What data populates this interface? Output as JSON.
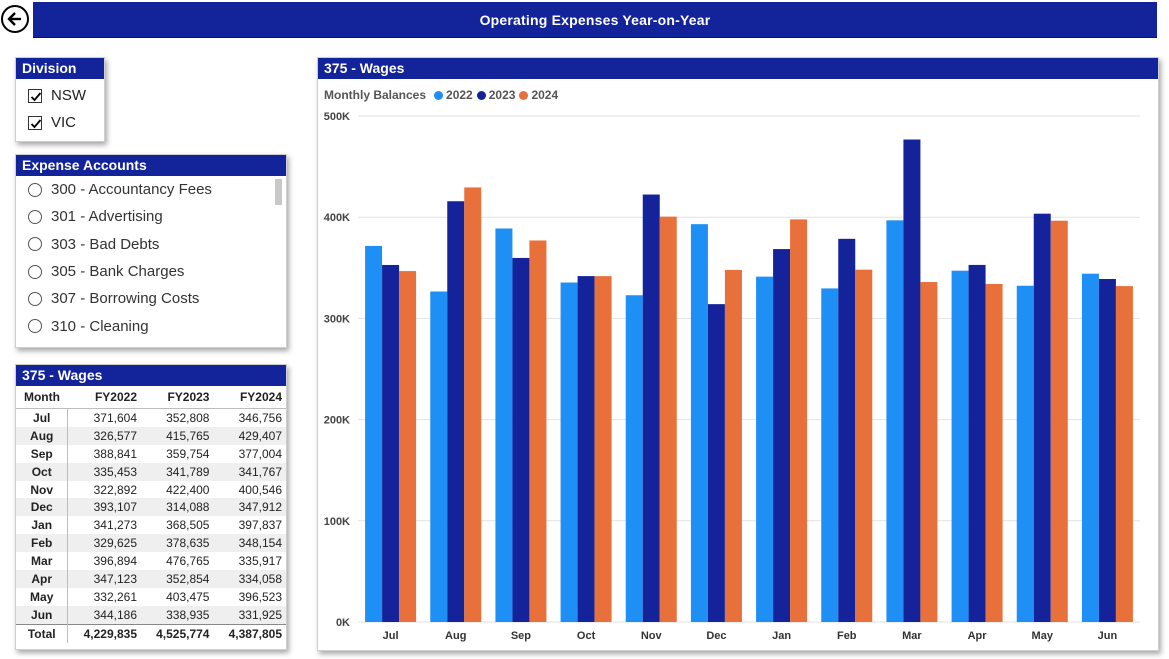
{
  "header": {
    "title": "Operating Expenses Year-on-Year",
    "back_icon": "back-arrow-icon"
  },
  "division": {
    "title": "Division",
    "items": [
      {
        "label": "NSW",
        "checked": true
      },
      {
        "label": "VIC",
        "checked": true
      }
    ]
  },
  "expense_accounts": {
    "title": "Expense Accounts",
    "items": [
      {
        "label": "300 - Accountancy Fees"
      },
      {
        "label": "301 - Advertising"
      },
      {
        "label": "303 - Bad Debts"
      },
      {
        "label": "305 - Bank Charges"
      },
      {
        "label": "307 - Borrowing Costs"
      },
      {
        "label": "310 - Cleaning"
      }
    ]
  },
  "wages_table": {
    "title": "375 - Wages",
    "columns": [
      "Month",
      "FY2022",
      "FY2023",
      "FY2024"
    ],
    "rows": [
      [
        "Jul",
        "371,604",
        "352,808",
        "346,756"
      ],
      [
        "Aug",
        "326,577",
        "415,765",
        "429,407"
      ],
      [
        "Sep",
        "388,841",
        "359,754",
        "377,004"
      ],
      [
        "Oct",
        "335,453",
        "341,789",
        "341,767"
      ],
      [
        "Nov",
        "322,892",
        "422,400",
        "400,546"
      ],
      [
        "Dec",
        "393,107",
        "314,088",
        "347,912"
      ],
      [
        "Jan",
        "341,273",
        "368,505",
        "397,837"
      ],
      [
        "Feb",
        "329,625",
        "378,635",
        "348,154"
      ],
      [
        "Mar",
        "396,894",
        "476,765",
        "335,917"
      ],
      [
        "Apr",
        "347,123",
        "352,854",
        "334,058"
      ],
      [
        "May",
        "332,261",
        "403,475",
        "396,523"
      ],
      [
        "Jun",
        "344,186",
        "338,935",
        "331,925"
      ]
    ],
    "total": [
      "Total",
      "4,229,835",
      "4,525,774",
      "4,387,805"
    ]
  },
  "chart_panel": {
    "title": "375 - Wages"
  },
  "chart_data": {
    "type": "bar",
    "legend_title": "Monthly Balances",
    "legend_position": "top-left",
    "categories": [
      "Jul",
      "Aug",
      "Sep",
      "Oct",
      "Nov",
      "Dec",
      "Jan",
      "Feb",
      "Mar",
      "Apr",
      "May",
      "Jun"
    ],
    "series": [
      {
        "name": "2022",
        "color": "#1e90f5",
        "values": [
          371604,
          326577,
          388841,
          335453,
          322892,
          393107,
          341273,
          329625,
          396894,
          347123,
          332261,
          344186
        ]
      },
      {
        "name": "2023",
        "color": "#15239a",
        "values": [
          352808,
          415765,
          359754,
          341789,
          422400,
          314088,
          368505,
          378635,
          476765,
          352854,
          403475,
          338935
        ]
      },
      {
        "name": "2024",
        "color": "#e8703a",
        "values": [
          346756,
          429407,
          377004,
          341767,
          400546,
          347912,
          397837,
          348154,
          335917,
          334058,
          396523,
          331925
        ]
      }
    ],
    "ylim": [
      0,
      500000
    ],
    "yticks": [
      0,
      100000,
      200000,
      300000,
      400000,
      500000
    ],
    "ytick_labels": [
      "0K",
      "100K",
      "200K",
      "300K",
      "400K",
      "500K"
    ],
    "grid": true
  }
}
